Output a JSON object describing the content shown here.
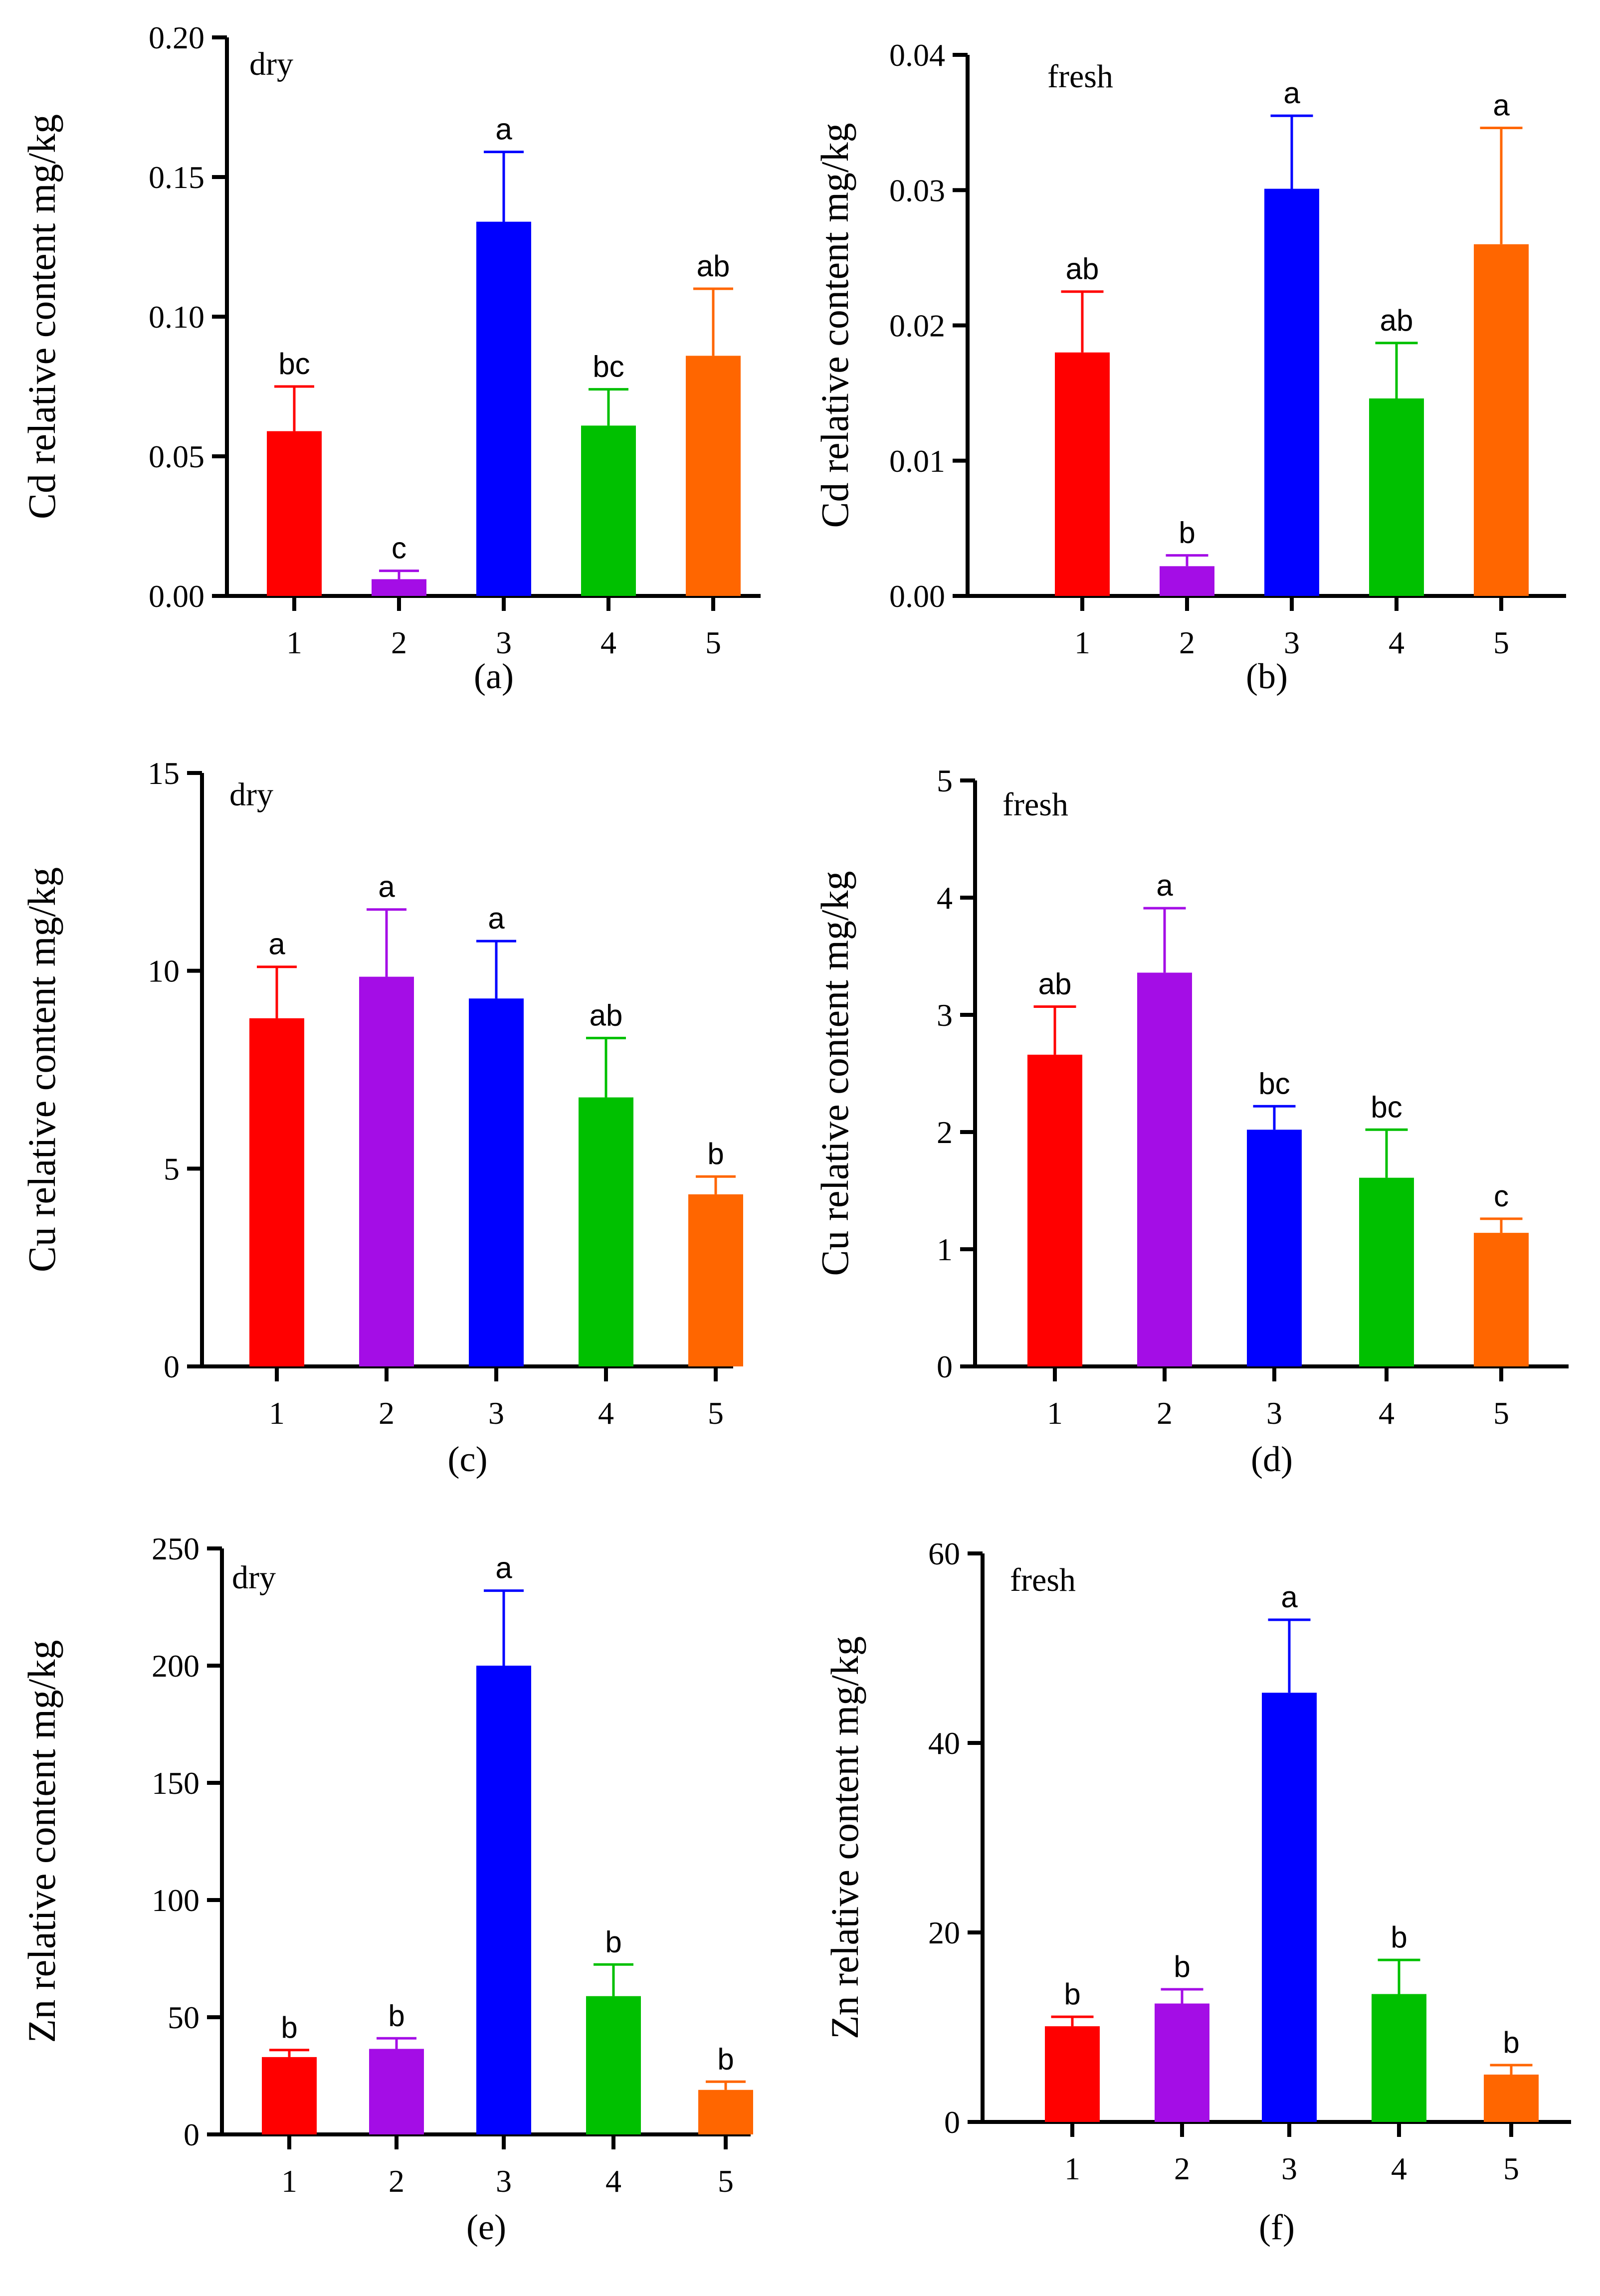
{
  "chart_data": [
    {
      "type": "bar",
      "panel_label": "(a)",
      "condition": "dry",
      "ylabel": "Cd relative content  mg/kg",
      "categories": [
        "1",
        "2",
        "3",
        "4",
        "5"
      ],
      "values": [
        0.059,
        0.006,
        0.134,
        0.061,
        0.086
      ],
      "errors": [
        0.016,
        0.003,
        0.025,
        0.013,
        0.024
      ],
      "letters": [
        "bc",
        "c",
        "a",
        "bc",
        "ab"
      ],
      "ylim": [
        0,
        0.2
      ],
      "yticks": [
        0,
        0.05,
        0.1,
        0.15,
        0.2
      ],
      "yticklabels": [
        "0.00",
        "0.05",
        "0.10",
        "0.15",
        "0.20"
      ]
    },
    {
      "type": "bar",
      "panel_label": "(b)",
      "condition": "fresh",
      "ylabel": "Cd relative content  mg/kg",
      "categories": [
        "1",
        "2",
        "3",
        "4",
        "5"
      ],
      "values": [
        0.018,
        0.0022,
        0.0301,
        0.0146,
        0.026
      ],
      "errors": [
        0.0045,
        0.0008,
        0.0054,
        0.0041,
        0.0086
      ],
      "letters": [
        "ab",
        "b",
        "a",
        "ab",
        "a"
      ],
      "ylim": [
        0,
        0.04
      ],
      "yticks": [
        0,
        0.01,
        0.02,
        0.03,
        0.04
      ],
      "yticklabels": [
        "0.00",
        "0.01",
        "0.02",
        "0.03",
        "0.04"
      ]
    },
    {
      "type": "bar",
      "panel_label": "(c)",
      "condition": "dry",
      "ylabel": "Cu relative content  mg/kg",
      "categories": [
        "1",
        "2",
        "3",
        "4",
        "5"
      ],
      "values": [
        8.8,
        9.85,
        9.3,
        6.8,
        4.35
      ],
      "errors": [
        1.3,
        1.7,
        1.45,
        1.5,
        0.45
      ],
      "letters": [
        "a",
        "a",
        "a",
        "ab",
        "b"
      ],
      "ylim": [
        0,
        15
      ],
      "yticks": [
        0,
        5,
        10,
        15
      ],
      "yticklabels": [
        "0",
        "5",
        "10",
        "15"
      ]
    },
    {
      "type": "bar",
      "panel_label": "(d)",
      "condition": "fresh",
      "ylabel": "Cu relative content  mg/kg",
      "categories": [
        "1",
        "2",
        "3",
        "4",
        "5"
      ],
      "values": [
        2.66,
        3.36,
        2.02,
        1.61,
        1.14
      ],
      "errors": [
        0.41,
        0.55,
        0.2,
        0.41,
        0.12
      ],
      "letters": [
        "ab",
        "a",
        "bc",
        "bc",
        "c"
      ],
      "ylim": [
        0,
        5
      ],
      "yticks": [
        0,
        1,
        2,
        3,
        4,
        5
      ],
      "yticklabels": [
        "0",
        "1",
        "2",
        "3",
        "4",
        "5"
      ]
    },
    {
      "type": "bar",
      "panel_label": "(e)",
      "condition": "dry",
      "ylabel": "Zn relative content  mg/kg",
      "categories": [
        "1",
        "2",
        "3",
        "4",
        "5"
      ],
      "values": [
        33,
        36.5,
        200,
        59,
        19
      ],
      "errors": [
        3,
        4.5,
        32,
        13.5,
        3.5
      ],
      "letters": [
        "b",
        "b",
        "a",
        "b",
        "b"
      ],
      "ylim": [
        0,
        250
      ],
      "yticks": [
        0,
        50,
        100,
        150,
        200,
        250
      ],
      "yticklabels": [
        "0",
        "50",
        "100",
        "150",
        "200",
        "250"
      ]
    },
    {
      "type": "bar",
      "panel_label": "(f)",
      "condition": "fresh",
      "ylabel": "Zn relative content  mg/kg",
      "categories": [
        "1",
        "2",
        "3",
        "4",
        "5"
      ],
      "values": [
        10.1,
        12.5,
        45.3,
        13.5,
        5
      ],
      "errors": [
        1,
        1.5,
        7.7,
        3.6,
        1
      ],
      "letters": [
        "b",
        "b",
        "a",
        "b",
        "b"
      ],
      "ylim": [
        0,
        60
      ],
      "yticks": [
        0,
        20,
        40,
        60
      ],
      "yticklabels": [
        "0",
        "20",
        "40",
        "60"
      ]
    }
  ],
  "colors": {
    "series": [
      "#ff0000",
      "#a40de6",
      "#0000ff",
      "#00c000",
      "#ff6600"
    ],
    "axis": "#000000"
  }
}
